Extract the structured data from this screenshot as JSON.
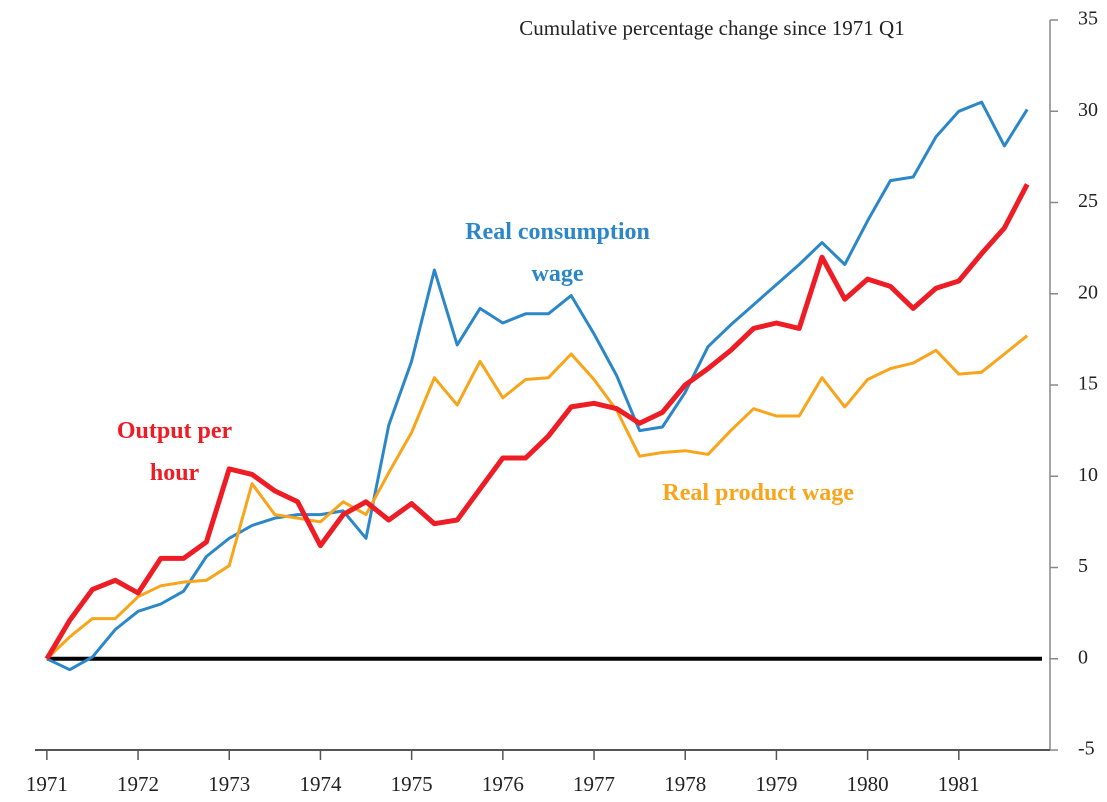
{
  "chart_data": {
    "type": "line",
    "title": "Cumulative percentage change since 1971 Q1",
    "x": [
      1971,
      1971.25,
      1971.5,
      1971.75,
      1972,
      1972.25,
      1972.5,
      1972.75,
      1973,
      1973.25,
      1973.5,
      1973.75,
      1974,
      1974.25,
      1974.5,
      1974.75,
      1975,
      1975.25,
      1975.5,
      1975.75,
      1976,
      1976.25,
      1976.5,
      1976.75,
      1977,
      1977.25,
      1977.5,
      1977.75,
      1978,
      1978.25,
      1978.5,
      1978.75,
      1979,
      1979.25,
      1979.5,
      1979.75,
      1980,
      1980.25,
      1980.5,
      1980.75,
      1981,
      1981.25,
      1981.5,
      1981.75
    ],
    "series": [
      {
        "name": "Real consumption wage",
        "color": "#2b87c8",
        "width": 3,
        "values": [
          0,
          -0.6,
          0.1,
          1.6,
          2.6,
          3.0,
          3.7,
          5.6,
          6.6,
          7.3,
          7.7,
          7.9,
          7.9,
          8.1,
          6.6,
          12.8,
          16.3,
          21.3,
          17.2,
          19.2,
          18.4,
          18.9,
          18.9,
          19.9,
          17.8,
          15.5,
          12.5,
          12.7,
          14.6,
          17.1,
          18.3,
          19.4,
          20.5,
          21.6,
          22.8,
          21.6,
          24.0,
          26.2,
          26.4,
          28.6,
          30.0,
          30.5,
          28.1,
          30.1
        ]
      },
      {
        "name": "Real product wage",
        "color": "#f8a51b",
        "width": 3,
        "values": [
          0,
          1.2,
          2.2,
          2.2,
          3.4,
          4.0,
          4.2,
          4.3,
          5.1,
          9.6,
          7.9,
          7.7,
          7.5,
          8.6,
          7.9,
          10.2,
          12.4,
          15.4,
          13.9,
          16.3,
          14.3,
          15.3,
          15.4,
          16.7,
          15.3,
          13.6,
          11.1,
          11.3,
          11.4,
          11.2,
          12.5,
          13.7,
          13.3,
          13.3,
          15.4,
          13.8,
          15.3,
          15.9,
          16.2,
          16.9,
          15.6,
          15.7,
          16.7,
          17.7
        ]
      },
      {
        "name": "Output per hour",
        "color": "#ee1c25",
        "width": 5,
        "values": [
          0,
          2.1,
          3.8,
          4.3,
          3.6,
          5.5,
          5.5,
          6.4,
          10.4,
          10.1,
          9.2,
          8.6,
          6.2,
          7.9,
          8.6,
          7.6,
          8.5,
          7.4,
          7.6,
          9.3,
          11.0,
          11.0,
          12.2,
          13.8,
          14.0,
          13.7,
          12.9,
          13.5,
          15.0,
          15.9,
          16.9,
          18.1,
          18.4,
          18.1,
          22.0,
          19.7,
          20.8,
          20.4,
          19.2,
          20.3,
          20.7,
          22.2,
          23.6,
          26.0
        ]
      }
    ],
    "annotations": [
      {
        "lines": [
          "Real consumption",
          "wage"
        ],
        "color": "#2b87c8",
        "x": 1976.6,
        "y": 23.3
      },
      {
        "lines": [
          "Output per",
          "hour"
        ],
        "color": "#ee1c25",
        "x": 1972.4,
        "y": 12.4
      },
      {
        "lines": [
          "Real product wage"
        ],
        "color": "#f8a51b",
        "x": 1978.8,
        "y": 9.0
      }
    ],
    "xlim": [
      1970.87,
      1982
    ],
    "ylim": [
      -5,
      35
    ],
    "xticks": [
      1971,
      1972,
      1973,
      1974,
      1975,
      1976,
      1977,
      1978,
      1979,
      1980,
      1981
    ],
    "yticks": [
      -5,
      0,
      5,
      10,
      15,
      20,
      25,
      30,
      35
    ]
  }
}
